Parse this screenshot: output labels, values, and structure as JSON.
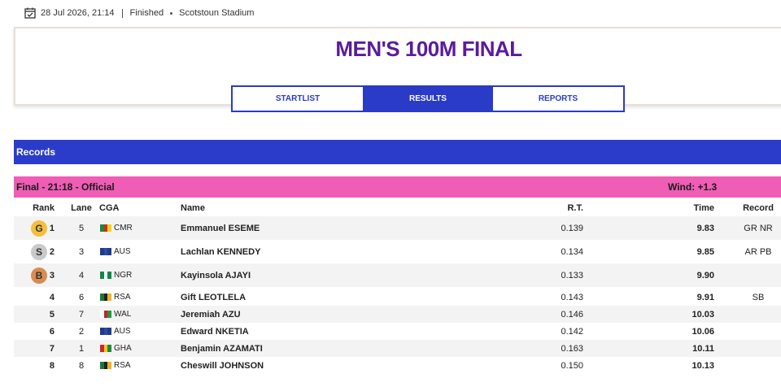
{
  "meta": {
    "date": "28 Jul 2026, 21:14",
    "status": "Finished",
    "venue": "Scotstoun Stadium"
  },
  "header": {
    "title": "MEN'S 100M FINAL",
    "tabs": [
      "STARTLIST",
      "RESULTS",
      "REPORTS"
    ],
    "active_tab": 1
  },
  "records": {
    "title": "Records"
  },
  "final": {
    "heading": "Final - 21:18 - Official",
    "wind": "Wind: +1.3"
  },
  "table": {
    "columns": [
      "Rank",
      "Lane",
      "CGA",
      "Name",
      "R.T.",
      "Time",
      "Record"
    ],
    "rows": [
      {
        "medal": "G",
        "medal_color": "#f3c03d",
        "rank": 1,
        "lane": 5,
        "cga": "CMR",
        "flag": [
          "#1a8a3a",
          "#d8262b",
          "#f6d21b"
        ],
        "name": "Emmanuel ESEME",
        "rt": "0.139",
        "time": "9.83",
        "record": "GR NR"
      },
      {
        "medal": "S",
        "medal_color": "#c9c9c9",
        "rank": 2,
        "lane": 3,
        "cga": "AUS",
        "flag": [
          "#1f3b8f",
          "#2a4aa3",
          "#1f3b8f"
        ],
        "name": "Lachlan KENNEDY",
        "rt": "0.134",
        "time": "9.85",
        "record": "AR PB"
      },
      {
        "medal": "B",
        "medal_color": "#d98c52",
        "rank": 3,
        "lane": 4,
        "cga": "NGR",
        "flag": [
          "#11884a",
          "#ffffff",
          "#11884a"
        ],
        "name": "Kayinsola AJAYI",
        "rt": "0.133",
        "time": "9.90"
      },
      {
        "rank": 4,
        "lane": 6,
        "cga": "RSA",
        "flag": [
          "#1a7a3a",
          "#222222",
          "#f0b323"
        ],
        "name": "Gift LEOTLELA",
        "rt": "0.143",
        "time": "9.91",
        "record": "SB"
      },
      {
        "rank": 5,
        "lane": 7,
        "cga": "WAL",
        "flag": [
          "#ffffff",
          "#c8202f",
          "#1f9a3e"
        ],
        "name": "Jeremiah AZU",
        "rt": "0.146",
        "time": "10.03"
      },
      {
        "rank": 6,
        "lane": 2,
        "cga": "AUS",
        "flag": [
          "#1f3b8f",
          "#2a4aa3",
          "#1f3b8f"
        ],
        "name": "Edward NKETIA",
        "rt": "0.142",
        "time": "10.06"
      },
      {
        "rank": 7,
        "lane": 1,
        "cga": "GHA",
        "flag": [
          "#d0262b",
          "#f6c81b",
          "#1a8a3a"
        ],
        "name": "Benjamin AZAMATI",
        "rt": "0.163",
        "time": "10.11"
      },
      {
        "rank": 8,
        "lane": 8,
        "cga": "RSA",
        "flag": [
          "#1a7a3a",
          "#222222",
          "#f0b323"
        ],
        "name": "Cheswill JOHNSON",
        "rt": "0.150",
        "time": "10.13"
      }
    ]
  }
}
